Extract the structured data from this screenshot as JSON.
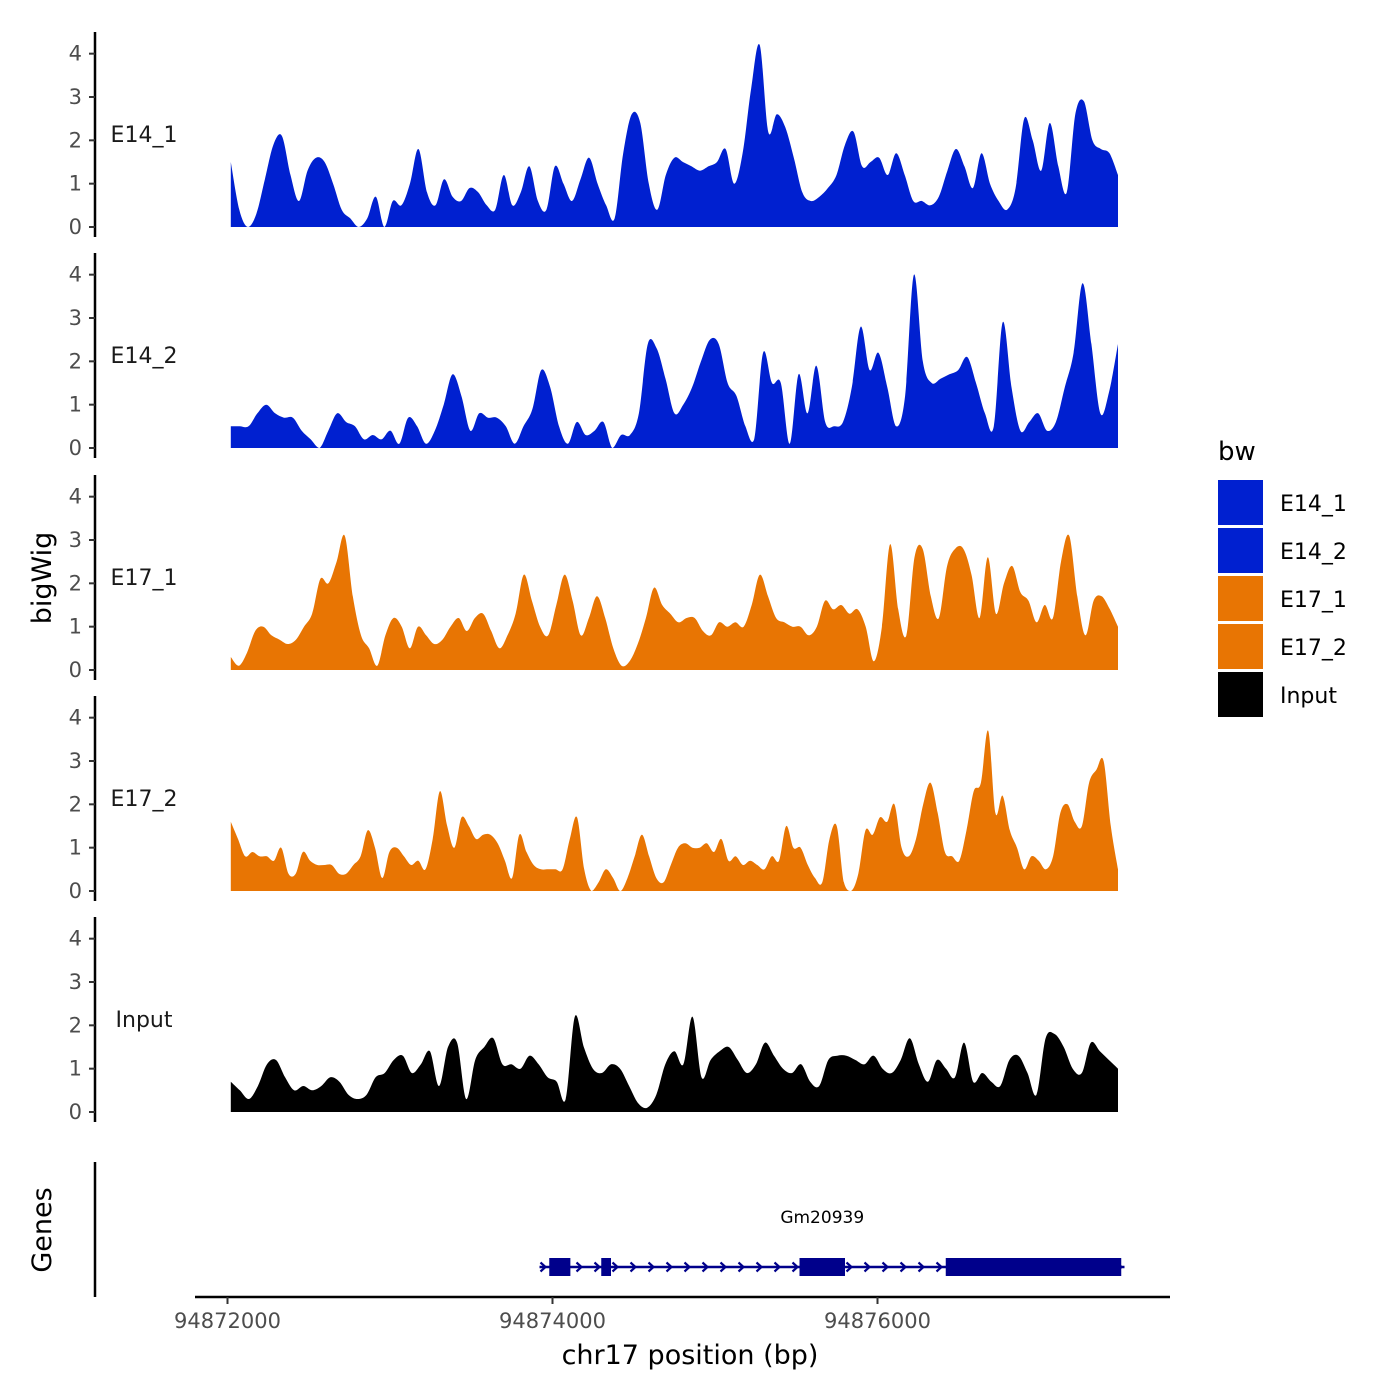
{
  "chart_data": {
    "type": "area",
    "xlabel": "chr17 position (bp)",
    "ylabel": "bigWig",
    "gene_panel_label": "Genes",
    "xlim": [
      94871800,
      94877800
    ],
    "x_data_range": [
      94872020,
      94877480
    ],
    "x_ticks": [
      94872000,
      94874000,
      94876000
    ],
    "x_tick_labels": [
      "94872000",
      "94874000",
      "94876000"
    ],
    "ylim": [
      0,
      4.5
    ],
    "y_ticks": [
      0,
      1,
      2,
      3,
      4
    ],
    "y_tick_labels": [
      "0",
      "1",
      "2",
      "3",
      "4"
    ],
    "legend": {
      "title": "bw",
      "position": "right",
      "items": [
        {
          "label": "E14_1",
          "color": "#0020D0"
        },
        {
          "label": "E14_2",
          "color": "#0020D0"
        },
        {
          "label": "E17_1",
          "color": "#E87503"
        },
        {
          "label": "E17_2",
          "color": "#E87503"
        },
        {
          "label": "Input",
          "color": "#000000"
        }
      ]
    },
    "tracks": [
      {
        "name": "E14_1",
        "color": "#0020D0",
        "values": [
          1.5,
          0.4,
          0.0,
          0.3,
          1.1,
          1.9,
          2.1,
          1.2,
          0.6,
          1.3,
          1.6,
          1.5,
          1.0,
          0.4,
          0.2,
          0.0,
          0.2,
          0.7,
          0.0,
          0.6,
          0.5,
          1.0,
          1.8,
          0.8,
          0.5,
          1.1,
          0.7,
          0.6,
          0.9,
          0.8,
          0.5,
          0.4,
          1.2,
          0.5,
          0.8,
          1.4,
          0.6,
          0.4,
          1.4,
          1.0,
          0.6,
          1.1,
          1.6,
          1.0,
          0.5,
          0.2,
          1.7,
          2.6,
          2.4,
          1.0,
          0.4,
          1.2,
          1.6,
          1.5,
          1.4,
          1.3,
          1.4,
          1.5,
          1.8,
          1.0,
          1.7,
          3.2,
          4.2,
          2.2,
          2.6,
          2.3,
          1.6,
          0.8,
          0.6,
          0.7,
          0.9,
          1.2,
          1.9,
          2.2,
          1.4,
          1.5,
          1.6,
          1.2,
          1.7,
          1.2,
          0.6,
          0.6,
          0.5,
          0.7,
          1.3,
          1.8,
          1.4,
          0.9,
          1.7,
          1.0,
          0.6,
          0.4,
          0.9,
          2.5,
          2.0,
          1.3,
          2.4,
          1.4,
          0.8,
          2.6,
          2.9,
          2.0,
          1.8,
          1.7,
          1.2
        ]
      },
      {
        "name": "E14_2",
        "color": "#0020D0",
        "values": [
          0.5,
          0.5,
          0.5,
          0.8,
          1.0,
          0.8,
          0.7,
          0.7,
          0.4,
          0.2,
          0.0,
          0.4,
          0.8,
          0.6,
          0.5,
          0.2,
          0.3,
          0.2,
          0.4,
          0.1,
          0.7,
          0.5,
          0.1,
          0.4,
          1.0,
          1.7,
          1.2,
          0.4,
          0.8,
          0.7,
          0.7,
          0.5,
          0.1,
          0.5,
          0.9,
          1.8,
          1.4,
          0.5,
          0.1,
          0.6,
          0.3,
          0.4,
          0.6,
          0.0,
          0.3,
          0.3,
          0.8,
          2.4,
          2.3,
          1.6,
          0.8,
          1.0,
          1.4,
          2.0,
          2.5,
          2.4,
          1.5,
          1.2,
          0.5,
          0.2,
          2.2,
          1.5,
          1.5,
          0.1,
          1.7,
          0.8,
          1.9,
          0.6,
          0.5,
          0.6,
          1.4,
          2.8,
          1.8,
          2.2,
          1.4,
          0.5,
          1.2,
          4.0,
          2.0,
          1.5,
          1.6,
          1.7,
          1.8,
          2.1,
          1.5,
          0.8,
          0.5,
          2.9,
          1.4,
          0.4,
          0.6,
          0.8,
          0.4,
          0.6,
          1.4,
          2.2,
          3.8,
          2.4,
          0.8,
          1.3,
          2.4
        ]
      },
      {
        "name": "E17_1",
        "color": "#E87503",
        "values": [
          0.3,
          0.1,
          0.4,
          0.9,
          1.0,
          0.8,
          0.7,
          0.6,
          0.7,
          1.0,
          1.3,
          2.1,
          2.0,
          2.5,
          3.1,
          1.7,
          0.8,
          0.5,
          0.1,
          0.8,
          1.2,
          1.0,
          0.5,
          1.0,
          0.8,
          0.6,
          0.7,
          1.0,
          1.2,
          0.9,
          1.2,
          1.3,
          0.9,
          0.5,
          0.8,
          1.3,
          2.2,
          1.6,
          1.0,
          0.8,
          1.5,
          2.2,
          1.6,
          0.8,
          1.2,
          1.7,
          1.2,
          0.5,
          0.1,
          0.2,
          0.6,
          1.2,
          1.9,
          1.5,
          1.3,
          1.1,
          1.2,
          1.2,
          0.9,
          0.8,
          1.1,
          1.0,
          1.1,
          1.0,
          1.5,
          2.2,
          1.7,
          1.2,
          1.1,
          1.0,
          1.0,
          0.8,
          1.0,
          1.6,
          1.4,
          1.5,
          1.3,
          1.4,
          1.0,
          0.2,
          1.0,
          2.9,
          1.4,
          0.8,
          2.6,
          2.8,
          1.7,
          1.2,
          2.4,
          2.8,
          2.8,
          2.2,
          1.2,
          2.6,
          1.3,
          2.0,
          2.4,
          1.8,
          1.6,
          1.1,
          1.5,
          1.2,
          2.5,
          3.1,
          1.7,
          0.8,
          1.6,
          1.7,
          1.4,
          1.0
        ]
      },
      {
        "name": "E17_2",
        "color": "#E87503",
        "values": [
          1.6,
          1.2,
          0.8,
          0.9,
          0.8,
          0.8,
          0.7,
          1.0,
          0.4,
          0.4,
          0.9,
          0.7,
          0.6,
          0.6,
          0.6,
          0.4,
          0.4,
          0.6,
          0.8,
          1.4,
          1.0,
          0.3,
          0.9,
          1.0,
          0.8,
          0.6,
          0.7,
          0.5,
          1.2,
          2.3,
          1.5,
          1.0,
          1.7,
          1.5,
          1.2,
          1.3,
          1.3,
          1.1,
          0.7,
          0.3,
          1.3,
          0.9,
          0.6,
          0.5,
          0.5,
          0.5,
          0.5,
          1.2,
          1.7,
          0.5,
          0.0,
          0.2,
          0.5,
          0.3,
          0.0,
          0.3,
          0.8,
          1.3,
          0.8,
          0.3,
          0.2,
          0.6,
          1.0,
          1.1,
          1.0,
          1.0,
          1.1,
          0.9,
          1.2,
          0.7,
          0.8,
          0.6,
          0.7,
          0.6,
          0.5,
          0.8,
          0.7,
          1.5,
          1.0,
          1.0,
          0.6,
          0.3,
          0.2,
          1.2,
          1.5,
          0.2,
          0.0,
          0.4,
          1.4,
          1.3,
          1.7,
          1.6,
          2.0,
          1.0,
          0.8,
          1.2,
          2.0,
          2.5,
          1.8,
          0.9,
          0.8,
          0.7,
          1.4,
          2.3,
          2.5,
          3.7,
          1.8,
          2.2,
          1.4,
          1.0,
          0.5,
          0.8,
          0.7,
          0.5,
          0.8,
          1.8,
          2.0,
          1.6,
          1.5,
          2.5,
          2.8,
          3.0,
          1.5,
          0.5
        ]
      },
      {
        "name": "Input",
        "color": "#000000",
        "values": [
          0.7,
          0.5,
          0.3,
          0.6,
          1.1,
          1.2,
          0.8,
          0.5,
          0.6,
          0.5,
          0.6,
          0.8,
          0.7,
          0.4,
          0.3,
          0.4,
          0.8,
          0.9,
          1.2,
          1.3,
          0.9,
          1.1,
          1.4,
          0.6,
          1.5,
          1.6,
          0.3,
          1.2,
          1.5,
          1.7,
          1.1,
          1.1,
          1.0,
          1.3,
          1.1,
          0.8,
          0.7,
          0.3,
          2.2,
          1.5,
          1.0,
          0.9,
          1.1,
          1.0,
          0.6,
          0.2,
          0.1,
          0.4,
          1.1,
          1.4,
          1.1,
          2.2,
          0.8,
          1.2,
          1.4,
          1.5,
          1.2,
          0.9,
          1.1,
          1.6,
          1.3,
          1.0,
          0.9,
          1.1,
          0.7,
          0.6,
          1.2,
          1.3,
          1.3,
          1.2,
          1.1,
          1.3,
          1.0,
          0.9,
          1.2,
          1.7,
          1.1,
          0.7,
          1.2,
          1.0,
          0.8,
          1.6,
          0.7,
          0.9,
          0.7,
          0.6,
          1.2,
          1.3,
          0.9,
          0.4,
          1.7,
          1.8,
          1.5,
          1.0,
          0.9,
          1.6,
          1.4,
          1.2,
          1.0
        ]
      }
    ],
    "genes": [
      {
        "name": "Gm20939",
        "strand": "+",
        "start": 94873920,
        "end": 94877520,
        "exons": [
          [
            94873980,
            94874110
          ],
          [
            94874300,
            94874360
          ],
          [
            94875520,
            94875800
          ],
          [
            94876420,
            94877500
          ]
        ]
      }
    ]
  }
}
